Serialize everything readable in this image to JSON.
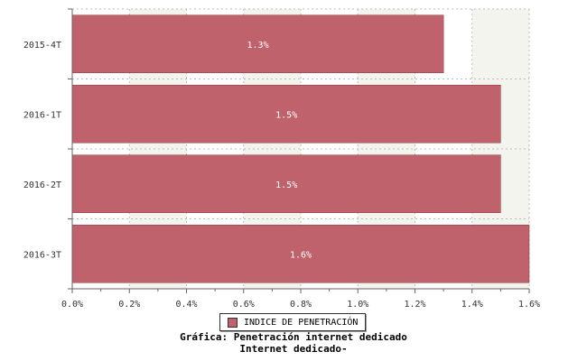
{
  "chart_data": {
    "type": "bar",
    "orientation": "horizontal",
    "categories": [
      "2015-4T",
      "2016-1T",
      "2016-2T",
      "2016-3T"
    ],
    "series": [
      {
        "name": "INDICE DE PENETRACIÓN",
        "values": [
          1.3,
          1.5,
          1.5,
          1.6
        ]
      }
    ],
    "data_labels": [
      "1.3%",
      "1.5%",
      "1.5%",
      "1.6%"
    ],
    "x_ticks": [
      "0.0%",
      "0.2%",
      "0.4%",
      "0.6%",
      "0.8%",
      "1.0%",
      "1.2%",
      "1.4%",
      "1.6%"
    ],
    "xlim": [
      0,
      1.6
    ],
    "grid": true,
    "legend_position": "bottom",
    "colors": {
      "bar": "#bf626c",
      "band": "#f4f4ee",
      "grid": "#bbbbbb",
      "axis": "#666666"
    }
  },
  "caption": {
    "line1": "Gráfica: Penetración internet dedicado",
    "line2": "Internet dedicado-"
  }
}
